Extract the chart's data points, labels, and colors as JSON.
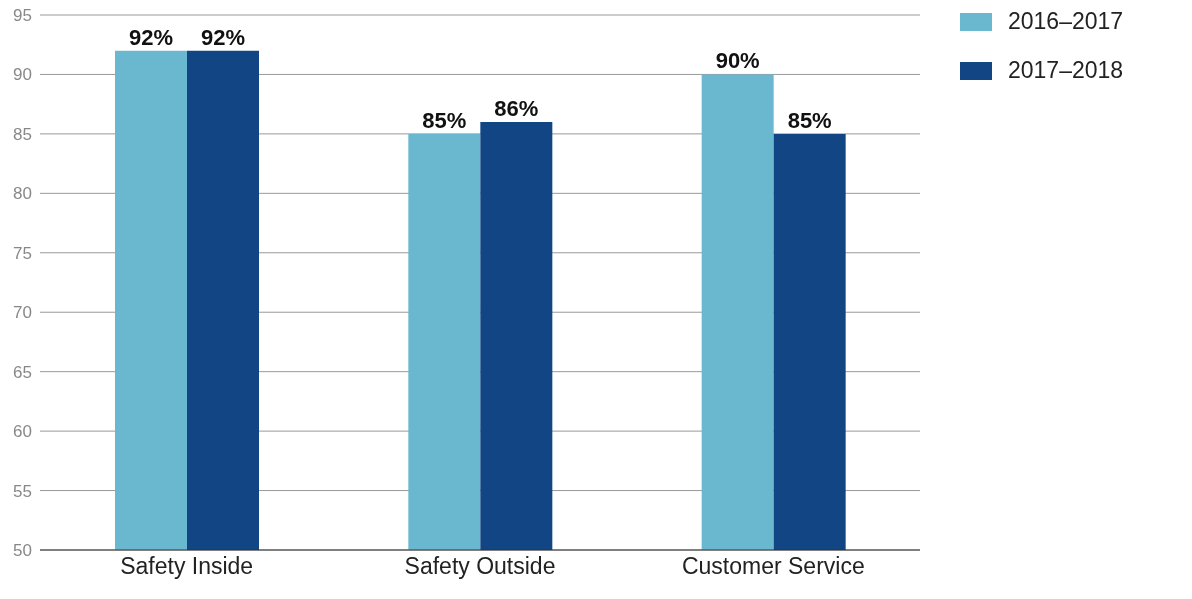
{
  "chart_data": {
    "type": "bar",
    "categories": [
      "Safety Inside",
      "Safety Outside",
      "Customer Service"
    ],
    "series": [
      {
        "name": "2016–2017",
        "color": "#6ab7d0",
        "values": [
          92,
          85,
          90
        ],
        "value_labels": [
          "92%",
          "85%",
          "90%"
        ]
      },
      {
        "name": "2017–2018",
        "color": "#124584",
        "values": [
          92,
          86,
          85
        ],
        "value_labels": [
          "92%",
          "86%",
          "85%"
        ]
      }
    ],
    "ylim": [
      50,
      95
    ],
    "yticks": [
      50,
      55,
      60,
      65,
      70,
      75,
      80,
      85,
      90,
      95
    ],
    "grid": "y",
    "legend": "top right"
  }
}
